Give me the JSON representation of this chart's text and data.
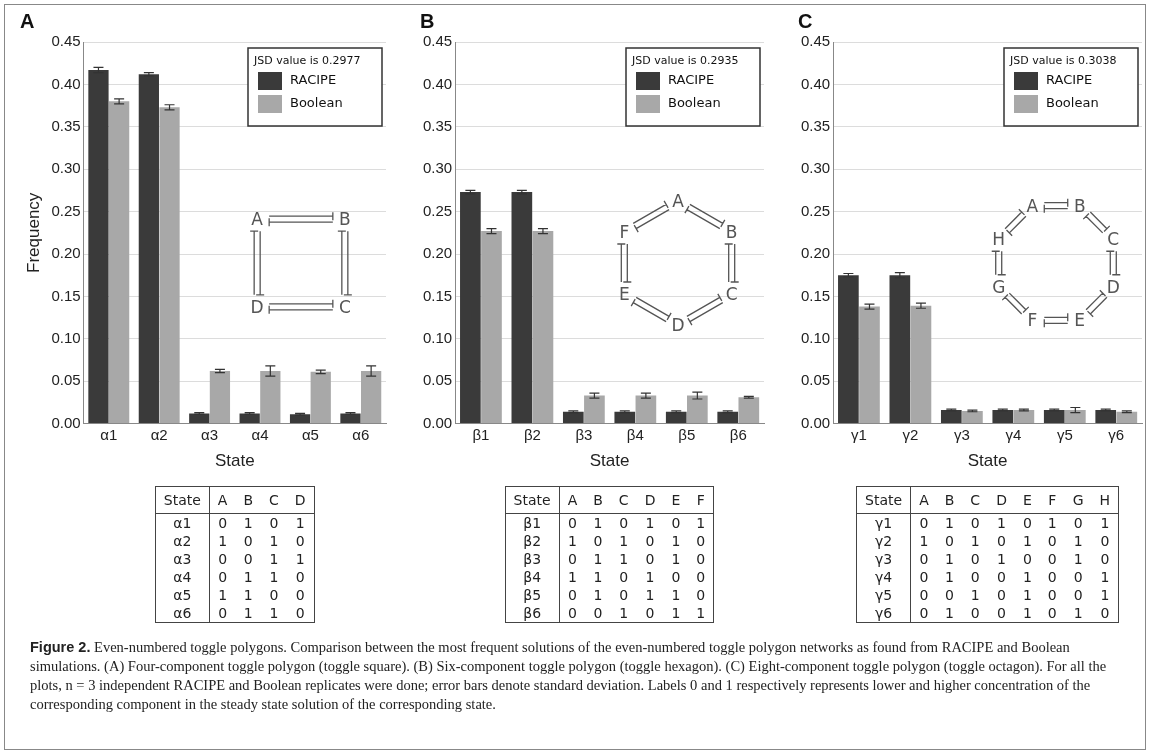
{
  "chart_data": [
    {
      "type": "bar",
      "title": "A",
      "xlabel": "State",
      "ylabel": "Frequency",
      "legend_title": "JSD value is 0.2977",
      "legend": "top right",
      "grid": "y",
      "categories": [
        "α1",
        "α2",
        "α3",
        "α4",
        "α5",
        "α6"
      ],
      "ylim": [
        0,
        0.45
      ],
      "yticks": [
        {
          "value": 0,
          "label": "0.00"
        },
        {
          "value": 0.05,
          "label": "0.05"
        },
        {
          "value": 0.1,
          "label": "0.10"
        },
        {
          "value": 0.15,
          "label": "0.15"
        },
        {
          "value": 0.2,
          "label": "0.20"
        },
        {
          "value": 0.25,
          "label": "0.25"
        },
        {
          "value": 0.3,
          "label": "0.30"
        },
        {
          "value": 0.35,
          "label": "0.35"
        },
        {
          "value": 0.4,
          "label": "0.40"
        },
        {
          "value": 0.45,
          "label": "0.45"
        }
      ],
      "series": [
        {
          "name": "RACIPE",
          "color": "#3a3a3a",
          "values": [
            0.417,
            0.412,
            0.012,
            0.012,
            0.011,
            0.012
          ],
          "errors": [
            0.003,
            0.002,
            0.001,
            0.001,
            0.001,
            0.001
          ]
        },
        {
          "name": "Boolean",
          "color": "#a8a8a8",
          "values": [
            0.38,
            0.373,
            0.062,
            0.062,
            0.061,
            0.062
          ],
          "errors": [
            0.003,
            0.003,
            0.002,
            0.006,
            0.002,
            0.006
          ]
        }
      ],
      "annotations": [
        "State A B C D",
        "α1 0 1 0 1",
        "α2 1 0 1 0",
        "α3 0 0 1 1",
        "α4 0 1 1 0",
        "α5 1 1 0 0",
        "α6 0 1 1 0",
        "A",
        "B",
        "C",
        "D"
      ]
    },
    {
      "type": "bar",
      "title": "B",
      "xlabel": "State",
      "legend_title": "JSD value is 0.2935",
      "legend": "top right",
      "grid": "y",
      "categories": [
        "β1",
        "β2",
        "β3",
        "β4",
        "β5",
        "β6"
      ],
      "ylim": [
        0,
        0.45
      ],
      "yticks": [
        {
          "value": 0,
          "label": "0.00"
        },
        {
          "value": 0.05,
          "label": "0.05"
        },
        {
          "value": 0.1,
          "label": "0.10"
        },
        {
          "value": 0.15,
          "label": "0.15"
        },
        {
          "value": 0.2,
          "label": "0.20"
        },
        {
          "value": 0.25,
          "label": "0.25"
        },
        {
          "value": 0.3,
          "label": "0.30"
        },
        {
          "value": 0.35,
          "label": "0.35"
        },
        {
          "value": 0.4,
          "label": "0.40"
        },
        {
          "value": 0.45,
          "label": "0.45"
        }
      ],
      "series": [
        {
          "name": "RACIPE",
          "color": "#3a3a3a",
          "values": [
            0.273,
            0.273,
            0.014,
            0.014,
            0.014,
            0.014
          ],
          "errors": [
            0.002,
            0.002,
            0.001,
            0.001,
            0.001,
            0.001
          ]
        },
        {
          "name": "Boolean",
          "color": "#a8a8a8",
          "values": [
            0.227,
            0.227,
            0.033,
            0.033,
            0.033,
            0.031
          ],
          "errors": [
            0.003,
            0.003,
            0.003,
            0.003,
            0.004,
            0.001
          ]
        }
      ],
      "annotations": [
        "State A B C D E F",
        "β1 0 1 0 1 0 1",
        "β2 1 0 1 0 1 0",
        "β3 0 1 1 0 1 0",
        "β4 1 1 0 1 0 0",
        "β5 0 1 0 1 1 0",
        "β6 0 0 1 0 1 1",
        "A",
        "B",
        "C",
        "D",
        "E",
        "F"
      ]
    },
    {
      "type": "bar",
      "title": "C",
      "xlabel": "State",
      "legend_title": "JSD value is 0.3038",
      "legend": "top right",
      "grid": "y",
      "categories": [
        "γ1",
        "γ2",
        "γ3",
        "γ4",
        "γ5",
        "γ6"
      ],
      "ylim": [
        0,
        0.45
      ],
      "yticks": [
        {
          "value": 0,
          "label": "0.00"
        },
        {
          "value": 0.05,
          "label": "0.05"
        },
        {
          "value": 0.1,
          "label": "0.10"
        },
        {
          "value": 0.15,
          "label": "0.15"
        },
        {
          "value": 0.2,
          "label": "0.20"
        },
        {
          "value": 0.25,
          "label": "0.25"
        },
        {
          "value": 0.3,
          "label": "0.30"
        },
        {
          "value": 0.35,
          "label": "0.35"
        },
        {
          "value": 0.4,
          "label": "0.40"
        },
        {
          "value": 0.45,
          "label": "0.45"
        }
      ],
      "series": [
        {
          "name": "RACIPE",
          "color": "#3a3a3a",
          "values": [
            0.175,
            0.175,
            0.016,
            0.016,
            0.016,
            0.016
          ],
          "errors": [
            0.002,
            0.003,
            0.001,
            0.001,
            0.001,
            0.001
          ]
        },
        {
          "name": "Boolean",
          "color": "#a8a8a8",
          "values": [
            0.138,
            0.139,
            0.015,
            0.016,
            0.016,
            0.014
          ],
          "errors": [
            0.003,
            0.003,
            0.001,
            0.001,
            0.003,
            0.001
          ]
        }
      ],
      "annotations": [
        "State A B C D E F G H",
        "γ1 0 1 0 1 0 1 0 1",
        "γ2 1 0 1 0 1 0 1 0",
        "γ3 0 1 0 1 0 0 1 0",
        "γ4 0 1 0 0 1 0 0 1",
        "γ5 0 0 1 0 1 0 0 1",
        "γ6 0 1 0 0 1 0 1 0",
        "A",
        "B",
        "C",
        "D",
        "E",
        "F",
        "G",
        "H"
      ]
    },
    {
      "type": "other",
      "title": "Figure 2.",
      "annotations": [
        "Even-numbered toggle polygons. Comparison between the most frequent solutions of the even-numbered toggle polygon networks as found from RACIPE and Boolean simulations. (A) Four-component toggle polygon (toggle square). (B) Six-component toggle polygon (toggle hexagon). (C) Eight-component toggle polygon (toggle octagon). For all the plots, n = 3 independent RACIPE and Boolean replicates were done; error bars denote standard deviation. Labels 0 and 1 respectively represents lower and higher concentration of the corresponding component in the steady state solution of the corresponding state."
      ]
    }
  ]
}
